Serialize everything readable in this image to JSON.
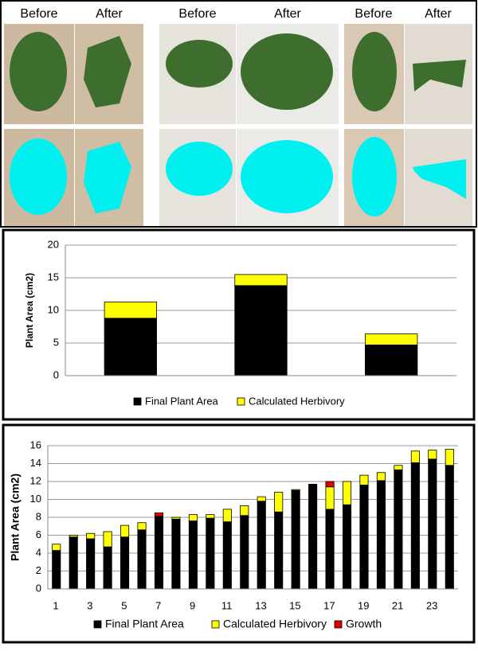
{
  "photo_panel": {
    "labels": [
      "Before",
      "After",
      "Before",
      "After",
      "Before",
      "After"
    ]
  },
  "chart_data": [
    {
      "type": "bar",
      "stacked": true,
      "ylabel": "Plant Area (cm2)",
      "categories": [
        null,
        null,
        null
      ],
      "series": [
        {
          "name": "Final Plant Area",
          "color": "#000000",
          "values": [
            8.8,
            13.8,
            4.7
          ]
        },
        {
          "name": "Calculated Herbivory",
          "color": "#ffff00",
          "values": [
            2.5,
            1.7,
            1.7
          ]
        }
      ],
      "ylim": [
        0,
        20
      ],
      "yticks": [
        0,
        5,
        10,
        15,
        20
      ],
      "grid": true
    },
    {
      "type": "bar",
      "stacked": true,
      "ylabel": "Plant Area (cm2)",
      "categories": [
        "1",
        null,
        "3",
        null,
        "5",
        null,
        "7",
        null,
        "9",
        null,
        "11",
        null,
        "13",
        null,
        "15",
        null,
        "17",
        null,
        "19",
        null,
        "21",
        null,
        "23",
        null
      ],
      "series": [
        {
          "name": "Final Plant Area",
          "color": "#000000",
          "values": [
            4.3,
            5.8,
            5.6,
            4.7,
            5.8,
            6.6,
            8.1,
            7.8,
            7.6,
            7.9,
            7.5,
            8.2,
            9.8,
            8.6,
            11.0,
            11.7,
            8.9,
            9.4,
            11.6,
            12.1,
            13.3,
            14.1,
            14.5,
            13.8
          ]
        },
        {
          "name": "Calculated Herbivory",
          "color": "#ffff00",
          "values": [
            0.7,
            0.2,
            0.6,
            1.7,
            1.3,
            0.8,
            null,
            0.2,
            0.7,
            0.4,
            1.4,
            1.1,
            0.5,
            2.2,
            0.1,
            null,
            2.5,
            2.6,
            1.1,
            0.9,
            0.5,
            1.3,
            1.0,
            1.8
          ]
        },
        {
          "name": "Growth",
          "color": "#e00000",
          "values": [
            null,
            null,
            null,
            null,
            null,
            null,
            0.4,
            null,
            null,
            null,
            null,
            null,
            null,
            null,
            null,
            null,
            0.6,
            null,
            null,
            null,
            null,
            null,
            null,
            null
          ]
        }
      ],
      "ylim": [
        0,
        16
      ],
      "yticks": [
        0,
        2,
        4,
        6,
        8,
        10,
        12,
        14,
        16
      ],
      "grid": true
    }
  ]
}
